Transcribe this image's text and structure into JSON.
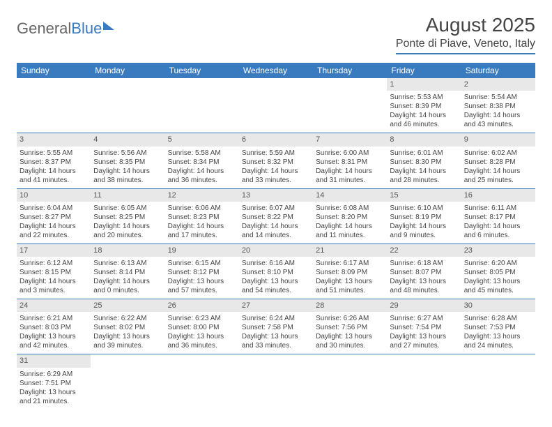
{
  "logo": {
    "part1": "General",
    "part2": "Blue"
  },
  "title": "August 2025",
  "location": "Ponte di Piave, Veneto, Italy",
  "weekdays": [
    "Sunday",
    "Monday",
    "Tuesday",
    "Wednesday",
    "Thursday",
    "Friday",
    "Saturday"
  ],
  "colors": {
    "accent": "#3a7bbf",
    "header_bg": "#3a7bbf",
    "daynum_bg": "#e8e8e8",
    "text": "#444444",
    "background": "#ffffff"
  },
  "typography": {
    "title_fontsize": 28,
    "location_fontsize": 16,
    "weekday_fontsize": 12,
    "daynum_fontsize": 11,
    "cell_fontsize": 10
  },
  "layout": {
    "columns": 7,
    "rows": 6
  },
  "weeks": [
    [
      null,
      null,
      null,
      null,
      null,
      {
        "n": "1",
        "sr": "Sunrise: 5:53 AM",
        "ss": "Sunset: 8:39 PM",
        "d1": "Daylight: 14 hours",
        "d2": "and 46 minutes."
      },
      {
        "n": "2",
        "sr": "Sunrise: 5:54 AM",
        "ss": "Sunset: 8:38 PM",
        "d1": "Daylight: 14 hours",
        "d2": "and 43 minutes."
      }
    ],
    [
      {
        "n": "3",
        "sr": "Sunrise: 5:55 AM",
        "ss": "Sunset: 8:37 PM",
        "d1": "Daylight: 14 hours",
        "d2": "and 41 minutes."
      },
      {
        "n": "4",
        "sr": "Sunrise: 5:56 AM",
        "ss": "Sunset: 8:35 PM",
        "d1": "Daylight: 14 hours",
        "d2": "and 38 minutes."
      },
      {
        "n": "5",
        "sr": "Sunrise: 5:58 AM",
        "ss": "Sunset: 8:34 PM",
        "d1": "Daylight: 14 hours",
        "d2": "and 36 minutes."
      },
      {
        "n": "6",
        "sr": "Sunrise: 5:59 AM",
        "ss": "Sunset: 8:32 PM",
        "d1": "Daylight: 14 hours",
        "d2": "and 33 minutes."
      },
      {
        "n": "7",
        "sr": "Sunrise: 6:00 AM",
        "ss": "Sunset: 8:31 PM",
        "d1": "Daylight: 14 hours",
        "d2": "and 31 minutes."
      },
      {
        "n": "8",
        "sr": "Sunrise: 6:01 AM",
        "ss": "Sunset: 8:30 PM",
        "d1": "Daylight: 14 hours",
        "d2": "and 28 minutes."
      },
      {
        "n": "9",
        "sr": "Sunrise: 6:02 AM",
        "ss": "Sunset: 8:28 PM",
        "d1": "Daylight: 14 hours",
        "d2": "and 25 minutes."
      }
    ],
    [
      {
        "n": "10",
        "sr": "Sunrise: 6:04 AM",
        "ss": "Sunset: 8:27 PM",
        "d1": "Daylight: 14 hours",
        "d2": "and 22 minutes."
      },
      {
        "n": "11",
        "sr": "Sunrise: 6:05 AM",
        "ss": "Sunset: 8:25 PM",
        "d1": "Daylight: 14 hours",
        "d2": "and 20 minutes."
      },
      {
        "n": "12",
        "sr": "Sunrise: 6:06 AM",
        "ss": "Sunset: 8:23 PM",
        "d1": "Daylight: 14 hours",
        "d2": "and 17 minutes."
      },
      {
        "n": "13",
        "sr": "Sunrise: 6:07 AM",
        "ss": "Sunset: 8:22 PM",
        "d1": "Daylight: 14 hours",
        "d2": "and 14 minutes."
      },
      {
        "n": "14",
        "sr": "Sunrise: 6:08 AM",
        "ss": "Sunset: 8:20 PM",
        "d1": "Daylight: 14 hours",
        "d2": "and 11 minutes."
      },
      {
        "n": "15",
        "sr": "Sunrise: 6:10 AM",
        "ss": "Sunset: 8:19 PM",
        "d1": "Daylight: 14 hours",
        "d2": "and 9 minutes."
      },
      {
        "n": "16",
        "sr": "Sunrise: 6:11 AM",
        "ss": "Sunset: 8:17 PM",
        "d1": "Daylight: 14 hours",
        "d2": "and 6 minutes."
      }
    ],
    [
      {
        "n": "17",
        "sr": "Sunrise: 6:12 AM",
        "ss": "Sunset: 8:15 PM",
        "d1": "Daylight: 14 hours",
        "d2": "and 3 minutes."
      },
      {
        "n": "18",
        "sr": "Sunrise: 6:13 AM",
        "ss": "Sunset: 8:14 PM",
        "d1": "Daylight: 14 hours",
        "d2": "and 0 minutes."
      },
      {
        "n": "19",
        "sr": "Sunrise: 6:15 AM",
        "ss": "Sunset: 8:12 PM",
        "d1": "Daylight: 13 hours",
        "d2": "and 57 minutes."
      },
      {
        "n": "20",
        "sr": "Sunrise: 6:16 AM",
        "ss": "Sunset: 8:10 PM",
        "d1": "Daylight: 13 hours",
        "d2": "and 54 minutes."
      },
      {
        "n": "21",
        "sr": "Sunrise: 6:17 AM",
        "ss": "Sunset: 8:09 PM",
        "d1": "Daylight: 13 hours",
        "d2": "and 51 minutes."
      },
      {
        "n": "22",
        "sr": "Sunrise: 6:18 AM",
        "ss": "Sunset: 8:07 PM",
        "d1": "Daylight: 13 hours",
        "d2": "and 48 minutes."
      },
      {
        "n": "23",
        "sr": "Sunrise: 6:20 AM",
        "ss": "Sunset: 8:05 PM",
        "d1": "Daylight: 13 hours",
        "d2": "and 45 minutes."
      }
    ],
    [
      {
        "n": "24",
        "sr": "Sunrise: 6:21 AM",
        "ss": "Sunset: 8:03 PM",
        "d1": "Daylight: 13 hours",
        "d2": "and 42 minutes."
      },
      {
        "n": "25",
        "sr": "Sunrise: 6:22 AM",
        "ss": "Sunset: 8:02 PM",
        "d1": "Daylight: 13 hours",
        "d2": "and 39 minutes."
      },
      {
        "n": "26",
        "sr": "Sunrise: 6:23 AM",
        "ss": "Sunset: 8:00 PM",
        "d1": "Daylight: 13 hours",
        "d2": "and 36 minutes."
      },
      {
        "n": "27",
        "sr": "Sunrise: 6:24 AM",
        "ss": "Sunset: 7:58 PM",
        "d1": "Daylight: 13 hours",
        "d2": "and 33 minutes."
      },
      {
        "n": "28",
        "sr": "Sunrise: 6:26 AM",
        "ss": "Sunset: 7:56 PM",
        "d1": "Daylight: 13 hours",
        "d2": "and 30 minutes."
      },
      {
        "n": "29",
        "sr": "Sunrise: 6:27 AM",
        "ss": "Sunset: 7:54 PM",
        "d1": "Daylight: 13 hours",
        "d2": "and 27 minutes."
      },
      {
        "n": "30",
        "sr": "Sunrise: 6:28 AM",
        "ss": "Sunset: 7:53 PM",
        "d1": "Daylight: 13 hours",
        "d2": "and 24 minutes."
      }
    ],
    [
      {
        "n": "31",
        "sr": "Sunrise: 6:29 AM",
        "ss": "Sunset: 7:51 PM",
        "d1": "Daylight: 13 hours",
        "d2": "and 21 minutes."
      },
      null,
      null,
      null,
      null,
      null,
      null
    ]
  ]
}
